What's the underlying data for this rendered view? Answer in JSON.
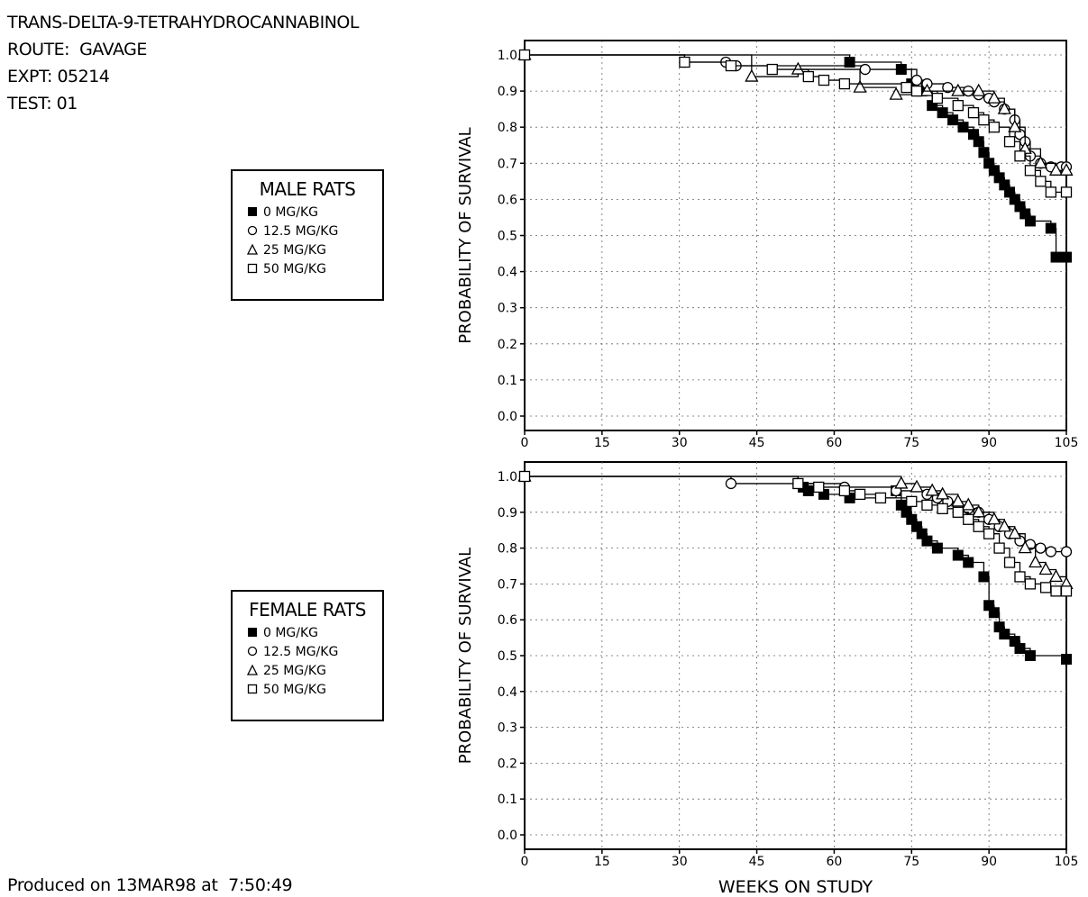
{
  "header": {
    "compound": "TRANS-DELTA-9-TETRAHYDROCANNABINOL",
    "route": "ROUTE:  GAVAGE",
    "expt": "EXPT: 05214",
    "test": "TEST: 01"
  },
  "footer": {
    "produced": "Produced on 13MAR98 at  7:50:49"
  },
  "legends": [
    {
      "title": "MALE RATS",
      "entries": [
        "0 MG/KG",
        "12.5 MG/KG",
        "25 MG/KG",
        "50 MG/KG"
      ],
      "markers": [
        "filled-square",
        "circle",
        "triangle",
        "open-square"
      ]
    },
    {
      "title": "FEMALE RATS",
      "entries": [
        "0 MG/KG",
        "12.5 MG/KG",
        "25 MG/KG",
        "50 MG/KG"
      ],
      "markers": [
        "filled-square",
        "circle",
        "triangle",
        "open-square"
      ]
    }
  ],
  "chart_data": [
    {
      "type": "line",
      "step": true,
      "panel": "male",
      "ylabel": "PROBABILITY OF SURVIVAL",
      "xlabel": "",
      "xlim": [
        0,
        105
      ],
      "ylim": [
        0.0,
        1.0
      ],
      "xticks": [
        "0",
        "15",
        "30",
        "45",
        "60",
        "75",
        "90",
        "105"
      ],
      "yticks": [
        "0.0",
        "0.1",
        "0.2",
        "0.3",
        "0.4",
        "0.5",
        "0.6",
        "0.7",
        "0.8",
        "0.9",
        "1.0"
      ],
      "grid": true,
      "series": [
        {
          "name": "0 MG/KG",
          "marker": "filled-square",
          "x": [
            0,
            63,
            73,
            75,
            77,
            79,
            81,
            83,
            85,
            87,
            88,
            89,
            90,
            91,
            92,
            93,
            94,
            95,
            96,
            97,
            98,
            102,
            103,
            105
          ],
          "y": [
            1.0,
            0.98,
            0.96,
            0.92,
            0.9,
            0.86,
            0.84,
            0.82,
            0.8,
            0.78,
            0.76,
            0.73,
            0.7,
            0.68,
            0.66,
            0.64,
            0.62,
            0.6,
            0.58,
            0.56,
            0.54,
            0.52,
            0.44,
            0.44
          ]
        },
        {
          "name": "12.5 MG/KG",
          "marker": "circle",
          "x": [
            0,
            31,
            39,
            41,
            66,
            76,
            78,
            82,
            86,
            88,
            90,
            91,
            93,
            95,
            96,
            97,
            98,
            100,
            102,
            104,
            105
          ],
          "y": [
            1.0,
            0.98,
            0.98,
            0.97,
            0.96,
            0.93,
            0.92,
            0.91,
            0.9,
            0.89,
            0.88,
            0.87,
            0.85,
            0.82,
            0.78,
            0.76,
            0.72,
            0.7,
            0.69,
            0.69,
            0.69
          ]
        },
        {
          "name": "25 MG/KG",
          "marker": "triangle",
          "x": [
            0,
            44,
            53,
            65,
            72,
            78,
            84,
            88,
            91,
            93,
            95,
            97,
            100,
            103,
            105
          ],
          "y": [
            1.0,
            0.94,
            0.96,
            0.91,
            0.89,
            0.9,
            0.9,
            0.9,
            0.88,
            0.85,
            0.8,
            0.74,
            0.7,
            0.68,
            0.68
          ]
        },
        {
          "name": "50 MG/KG",
          "marker": "open-square",
          "x": [
            0,
            31,
            40,
            48,
            55,
            58,
            62,
            74,
            76,
            80,
            84,
            87,
            89,
            91,
            94,
            96,
            98,
            100,
            102,
            105
          ],
          "y": [
            1.0,
            0.98,
            0.97,
            0.96,
            0.94,
            0.93,
            0.92,
            0.91,
            0.9,
            0.88,
            0.86,
            0.84,
            0.82,
            0.8,
            0.76,
            0.72,
            0.68,
            0.65,
            0.62,
            0.62
          ]
        }
      ]
    },
    {
      "type": "line",
      "step": true,
      "panel": "female",
      "ylabel": "PROBABILITY OF SURVIVAL",
      "xlabel": "WEEKS ON STUDY",
      "xlim": [
        0,
        105
      ],
      "ylim": [
        0.0,
        1.0
      ],
      "xticks": [
        "0",
        "15",
        "30",
        "45",
        "60",
        "75",
        "90",
        "105"
      ],
      "yticks": [
        "0.0",
        "0.1",
        "0.2",
        "0.3",
        "0.4",
        "0.5",
        "0.6",
        "0.7",
        "0.8",
        "0.9",
        "1.0"
      ],
      "grid": true,
      "series": [
        {
          "name": "0 MG/KG",
          "marker": "filled-square",
          "x": [
            0,
            53,
            54,
            55,
            58,
            63,
            72,
            73,
            74,
            75,
            76,
            77,
            78,
            80,
            84,
            86,
            89,
            90,
            91,
            92,
            93,
            95,
            96,
            98,
            105
          ],
          "y": [
            1.0,
            0.98,
            0.97,
            0.96,
            0.95,
            0.94,
            0.96,
            0.92,
            0.9,
            0.88,
            0.86,
            0.84,
            0.82,
            0.8,
            0.78,
            0.76,
            0.72,
            0.64,
            0.62,
            0.58,
            0.56,
            0.54,
            0.52,
            0.5,
            0.49
          ]
        },
        {
          "name": "12.5 MG/KG",
          "marker": "circle",
          "x": [
            0,
            40,
            62,
            72,
            78,
            80,
            82,
            84,
            86,
            88,
            90,
            92,
            94,
            96,
            98,
            100,
            102,
            105
          ],
          "y": [
            1.0,
            0.98,
            0.97,
            0.96,
            0.95,
            0.94,
            0.93,
            0.92,
            0.91,
            0.9,
            0.88,
            0.86,
            0.84,
            0.82,
            0.81,
            0.8,
            0.79,
            0.79
          ]
        },
        {
          "name": "25 MG/KG",
          "marker": "triangle",
          "x": [
            0,
            73,
            76,
            79,
            81,
            84,
            86,
            88,
            91,
            93,
            95,
            97,
            99,
            101,
            103,
            105
          ],
          "y": [
            1.0,
            0.98,
            0.97,
            0.96,
            0.95,
            0.93,
            0.92,
            0.9,
            0.88,
            0.86,
            0.84,
            0.8,
            0.76,
            0.74,
            0.72,
            0.7
          ]
        },
        {
          "name": "50 MG/KG",
          "marker": "open-square",
          "x": [
            0,
            53,
            57,
            62,
            65,
            69,
            75,
            78,
            81,
            84,
            86,
            88,
            90,
            92,
            94,
            96,
            98,
            101,
            103,
            105
          ],
          "y": [
            1.0,
            0.98,
            0.97,
            0.96,
            0.95,
            0.94,
            0.93,
            0.92,
            0.91,
            0.9,
            0.88,
            0.86,
            0.84,
            0.8,
            0.76,
            0.72,
            0.7,
            0.69,
            0.68,
            0.68
          ]
        }
      ]
    }
  ]
}
